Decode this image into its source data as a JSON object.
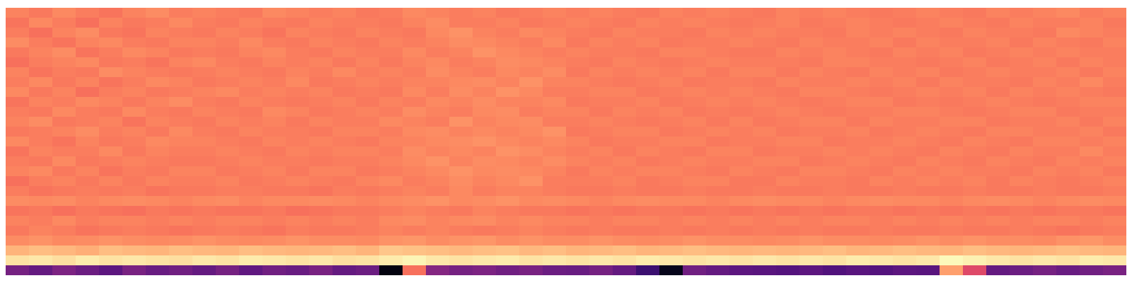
{
  "chart_data": {
    "type": "heatmap",
    "color": "magma",
    "zlim": [
      0,
      100
    ],
    "tick_labels": false,
    "z": [
      [
        74,
        72,
        75,
        73,
        71,
        74,
        76,
        73,
        74,
        73,
        72,
        75,
        74,
        73,
        74,
        72,
        73,
        75,
        74,
        73,
        74,
        72,
        73,
        74,
        73,
        74,
        73,
        72,
        74,
        73,
        74,
        73,
        72,
        74,
        73,
        74,
        73,
        72,
        73,
        74,
        73,
        72,
        74,
        73,
        74,
        75,
        73,
        74
      ],
      [
        71,
        75,
        73,
        70,
        74,
        72,
        73,
        75,
        73,
        72,
        74,
        73,
        72,
        74,
        73,
        73,
        72,
        74,
        76,
        73,
        73,
        74,
        72,
        73,
        74,
        73,
        72,
        74,
        73,
        74,
        73,
        72,
        73,
        74,
        72,
        73,
        74,
        73,
        72,
        73,
        74,
        73,
        72,
        74,
        73,
        73,
        74,
        72
      ],
      [
        73,
        70,
        74,
        76,
        72,
        71,
        74,
        73,
        72,
        74,
        73,
        71,
        74,
        73,
        72,
        74,
        73,
        72,
        75,
        77,
        74,
        73,
        75,
        74,
        73,
        72,
        74,
        73,
        73,
        72,
        74,
        73,
        74,
        73,
        73,
        72,
        74,
        73,
        74,
        73,
        72,
        74,
        73,
        73,
        72,
        75,
        74,
        73
      ],
      [
        76,
        73,
        71,
        74,
        75,
        73,
        72,
        74,
        74,
        73,
        75,
        73,
        72,
        74,
        73,
        72,
        74,
        73,
        74,
        76,
        75,
        74,
        73,
        75,
        72,
        74,
        73,
        74,
        72,
        73,
        73,
        74,
        73,
        72,
        74,
        73,
        73,
        74,
        72,
        74,
        73,
        73,
        74,
        72,
        74,
        73,
        72,
        74
      ],
      [
        72,
        74,
        76,
        71,
        73,
        75,
        74,
        72,
        73,
        72,
        74,
        75,
        73,
        72,
        74,
        73,
        73,
        75,
        73,
        74,
        77,
        75,
        74,
        73,
        74,
        73,
        73,
        72,
        74,
        74,
        73,
        72,
        72,
        74,
        73,
        74,
        73,
        72,
        74,
        73,
        74,
        72,
        73,
        74,
        73,
        74,
        73,
        73
      ],
      [
        70,
        73,
        74,
        75,
        72,
        73,
        71,
        74,
        75,
        73,
        72,
        74,
        73,
        74,
        72,
        74,
        72,
        74,
        75,
        73,
        74,
        76,
        75,
        74,
        73,
        72,
        74,
        73,
        72,
        73,
        74,
        73,
        73,
        73,
        72,
        74,
        74,
        73,
        73,
        72,
        73,
        74,
        72,
        73,
        74,
        72,
        74,
        73
      ],
      [
        74,
        71,
        73,
        72,
        76,
        74,
        73,
        72,
        73,
        74,
        73,
        72,
        74,
        73,
        75,
        73,
        74,
        73,
        76,
        74,
        73,
        75,
        74,
        76,
        72,
        74,
        73,
        74,
        73,
        74,
        72,
        74,
        74,
        72,
        74,
        73,
        72,
        74,
        73,
        74,
        72,
        73,
        74,
        73,
        73,
        74,
        72,
        74
      ],
      [
        73,
        75,
        72,
        74,
        71,
        73,
        75,
        74,
        72,
        73,
        74,
        73,
        75,
        72,
        73,
        74,
        73,
        74,
        74,
        75,
        76,
        74,
        77,
        74,
        74,
        73,
        72,
        73,
        74,
        72,
        73,
        73,
        72,
        74,
        73,
        73,
        74,
        73,
        74,
        72,
        74,
        73,
        73,
        72,
        74,
        73,
        75,
        73
      ],
      [
        75,
        72,
        74,
        70,
        73,
        74,
        72,
        73,
        74,
        75,
        73,
        74,
        73,
        74,
        72,
        73,
        72,
        75,
        73,
        76,
        74,
        77,
        75,
        73,
        73,
        74,
        74,
        72,
        73,
        74,
        73,
        74,
        73,
        72,
        74,
        74,
        73,
        72,
        73,
        74,
        73,
        74,
        72,
        74,
        73,
        74,
        73,
        72
      ],
      [
        71,
        74,
        73,
        75,
        74,
        72,
        74,
        76,
        73,
        72,
        74,
        73,
        72,
        73,
        74,
        72,
        74,
        73,
        75,
        74,
        76,
        74,
        74,
        75,
        72,
        73,
        73,
        74,
        72,
        73,
        74,
        73,
        74,
        73,
        72,
        73,
        74,
        74,
        72,
        73,
        72,
        73,
        74,
        73,
        72,
        73,
        74,
        74
      ],
      [
        73,
        72,
        75,
        73,
        72,
        75,
        73,
        72,
        74,
        73,
        72,
        75,
        74,
        72,
        73,
        74,
        73,
        76,
        74,
        73,
        75,
        76,
        73,
        74,
        74,
        72,
        74,
        73,
        74,
        72,
        73,
        72,
        73,
        74,
        73,
        72,
        73,
        73,
        74,
        74,
        73,
        72,
        73,
        74,
        74,
        72,
        73,
        73
      ],
      [
        74,
        76,
        72,
        73,
        74,
        71,
        74,
        73,
        72,
        74,
        73,
        74,
        72,
        74,
        73,
        73,
        75,
        74,
        73,
        77,
        74,
        75,
        76,
        73,
        73,
        74,
        73,
        72,
        73,
        74,
        72,
        74,
        72,
        73,
        74,
        74,
        72,
        74,
        73,
        73,
        74,
        74,
        72,
        73,
        73,
        74,
        72,
        74
      ],
      [
        72,
        73,
        74,
        76,
        73,
        74,
        72,
        75,
        73,
        72,
        74,
        73,
        73,
        72,
        74,
        74,
        73,
        75,
        76,
        74,
        75,
        74,
        75,
        77,
        72,
        73,
        74,
        74,
        72,
        73,
        74,
        73,
        74,
        72,
        73,
        73,
        74,
        72,
        73,
        74,
        73,
        72,
        74,
        74,
        73,
        73,
        74,
        72
      ],
      [
        75,
        73,
        71,
        74,
        72,
        73,
        75,
        74,
        74,
        73,
        72,
        74,
        73,
        74,
        73,
        72,
        74,
        74,
        75,
        76,
        77,
        75,
        74,
        75,
        74,
        72,
        73,
        73,
        74,
        74,
        72,
        73,
        73,
        74,
        74,
        72,
        73,
        73,
        74,
        73,
        72,
        74,
        73,
        72,
        74,
        74,
        73,
        74
      ],
      [
        71,
        74,
        73,
        73,
        75,
        72,
        74,
        73,
        73,
        74,
        73,
        72,
        74,
        73,
        74,
        74,
        73,
        76,
        74,
        75,
        74,
        77,
        76,
        74,
        73,
        74,
        72,
        74,
        73,
        72,
        74,
        74,
        72,
        73,
        73,
        74,
        73,
        74,
        73,
        72,
        74,
        73,
        72,
        74,
        73,
        73,
        75,
        73
      ],
      [
        73,
        72,
        75,
        72,
        73,
        74,
        73,
        72,
        72,
        73,
        74,
        73,
        73,
        72,
        73,
        73,
        74,
        75,
        77,
        74,
        76,
        75,
        74,
        76,
        74,
        73,
        74,
        72,
        73,
        74,
        73,
        73,
        74,
        74,
        72,
        73,
        74,
        73,
        72,
        74,
        73,
        72,
        74,
        73,
        72,
        74,
        73,
        74
      ],
      [
        74,
        75,
        72,
        74,
        71,
        73,
        72,
        74,
        74,
        72,
        73,
        74,
        72,
        74,
        74,
        72,
        73,
        74,
        75,
        77,
        75,
        76,
        75,
        74,
        72,
        74,
        73,
        74,
        74,
        73,
        72,
        74,
        73,
        72,
        74,
        74,
        73,
        72,
        74,
        73,
        74,
        73,
        73,
        72,
        74,
        73,
        74,
        72
      ],
      [
        70,
        73,
        74,
        72,
        74,
        72,
        74,
        73,
        73,
        74,
        72,
        73,
        74,
        73,
        72,
        74,
        75,
        73,
        74,
        76,
        74,
        75,
        77,
        73,
        73,
        73,
        74,
        72,
        73,
        74,
        74,
        72,
        72,
        74,
        73,
        73,
        72,
        74,
        73,
        74,
        73,
        74,
        72,
        74,
        73,
        72,
        73,
        74
      ],
      [
        73,
        71,
        72,
        73,
        72,
        73,
        71,
        72,
        72,
        73,
        73,
        72,
        72,
        71,
        73,
        72,
        73,
        74,
        73,
        75,
        73,
        74,
        74,
        73,
        72,
        72,
        73,
        72,
        72,
        73,
        72,
        72,
        73,
        72,
        72,
        73,
        72,
        72,
        73,
        72,
        72,
        73,
        72,
        72,
        73,
        72,
        72,
        73
      ],
      [
        76,
        75,
        76,
        74,
        75,
        76,
        75,
        74,
        75,
        76,
        74,
        75,
        75,
        76,
        75,
        74,
        75,
        76,
        77,
        75,
        76,
        77,
        75,
        76,
        75,
        74,
        75,
        76,
        75,
        75,
        74,
        75,
        76,
        75,
        75,
        74,
        75,
        76,
        75,
        75,
        74,
        75,
        76,
        75,
        74,
        75,
        76,
        75
      ],
      [
        71,
        72,
        70,
        72,
        71,
        70,
        72,
        71,
        72,
        71,
        71,
        72,
        70,
        71,
        72,
        72,
        73,
        74,
        73,
        72,
        74,
        73,
        72,
        72,
        71,
        72,
        71,
        72,
        72,
        71,
        72,
        71,
        72,
        71,
        72,
        71,
        72,
        72,
        71,
        72,
        71,
        72,
        71,
        72,
        71,
        72,
        72,
        71
      ],
      [
        74,
        73,
        75,
        73,
        74,
        74,
        73,
        74,
        73,
        74,
        74,
        73,
        74,
        73,
        74,
        73,
        75,
        76,
        74,
        75,
        76,
        74,
        75,
        74,
        74,
        73,
        74,
        74,
        73,
        74,
        73,
        74,
        73,
        74,
        73,
        74,
        74,
        73,
        74,
        73,
        74,
        73,
        74,
        73,
        74,
        74,
        73,
        74
      ],
      [
        72,
        74,
        73,
        71,
        72,
        73,
        72,
        71,
        72,
        73,
        72,
        71,
        73,
        72,
        72,
        73,
        74,
        73,
        74,
        73,
        72,
        73,
        74,
        73,
        72,
        73,
        72,
        72,
        73,
        72,
        73,
        72,
        73,
        72,
        73,
        72,
        72,
        73,
        72,
        72,
        73,
        72,
        72,
        73,
        72,
        71,
        72,
        73
      ],
      [
        76,
        77,
        75,
        76,
        77,
        76,
        75,
        76,
        77,
        76,
        75,
        76,
        77,
        76,
        76,
        75,
        77,
        78,
        76,
        77,
        78,
        76,
        77,
        76,
        76,
        77,
        76,
        75,
        76,
        77,
        76,
        76,
        75,
        76,
        77,
        76,
        76,
        75,
        76,
        77,
        76,
        77,
        76,
        76,
        75,
        77,
        78,
        76
      ],
      [
        84,
        86,
        85,
        83,
        86,
        85,
        84,
        86,
        85,
        84,
        86,
        85,
        84,
        85,
        86,
        84,
        88,
        87,
        86,
        85,
        86,
        87,
        85,
        86,
        84,
        85,
        86,
        84,
        85,
        86,
        85,
        84,
        85,
        84,
        85,
        86,
        84,
        85,
        86,
        85,
        84,
        86,
        85,
        84,
        85,
        86,
        85,
        84
      ],
      [
        94,
        95,
        93,
        96,
        94,
        95,
        94,
        93,
        95,
        94,
        96,
        95,
        94,
        95,
        93,
        94,
        96,
        98,
        95,
        94,
        95,
        96,
        94,
        95,
        94,
        95,
        94,
        96,
        95,
        94,
        95,
        94,
        95,
        94,
        95,
        94,
        96,
        95,
        94,
        95,
        99,
        97,
        95,
        94,
        95,
        94,
        96,
        95
      ],
      [
        34,
        30,
        36,
        32,
        28,
        35,
        31,
        33,
        30,
        34,
        29,
        33,
        31,
        35,
        30,
        32,
        3,
        70,
        38,
        34,
        36,
        33,
        35,
        32,
        31,
        34,
        30,
        20,
        5,
        33,
        30,
        28,
        27,
        26,
        28,
        25,
        27,
        26,
        28,
        27,
        80,
        60,
        30,
        32,
        34,
        31,
        33,
        35
      ]
    ]
  }
}
